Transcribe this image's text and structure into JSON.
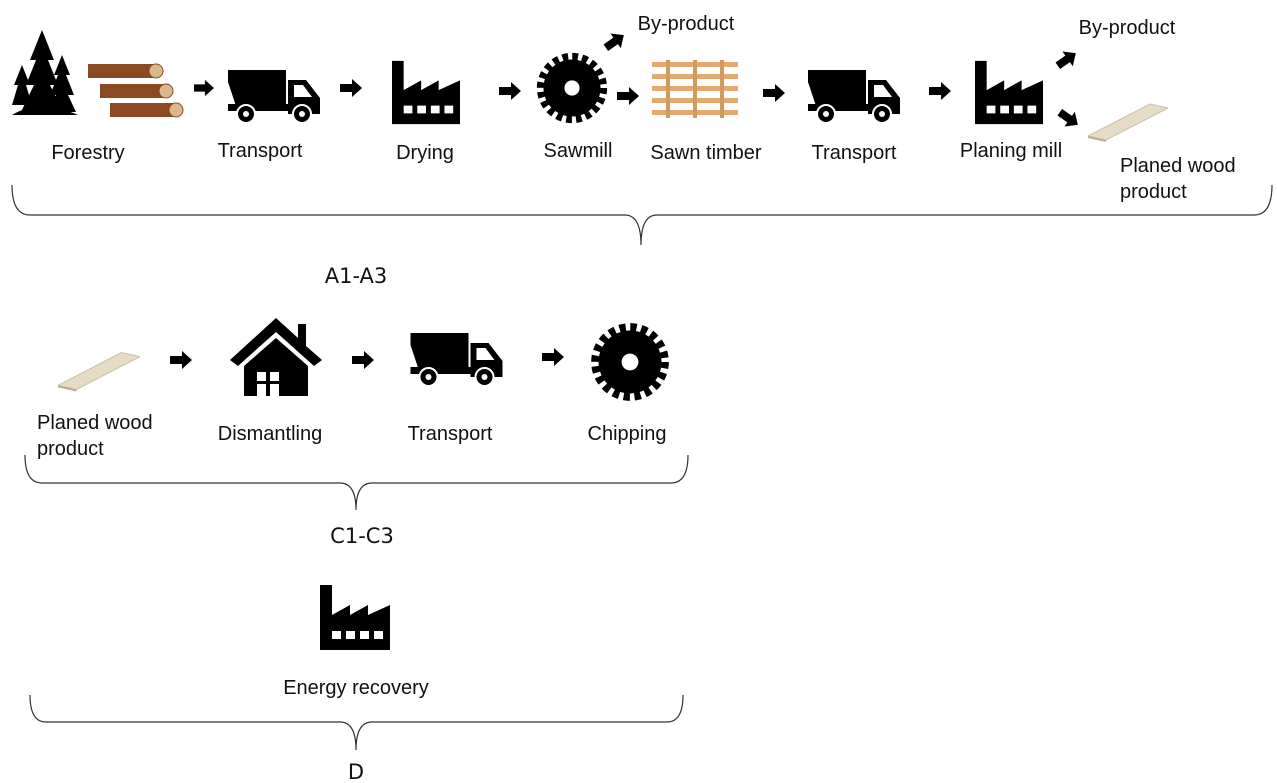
{
  "a1_a3": {
    "label": "A1-A3",
    "steps": [
      {
        "label": "Forestry"
      },
      {
        "label": "Transport"
      },
      {
        "label": "Drying"
      },
      {
        "label": "Sawmill"
      },
      {
        "label": "Sawn timber"
      },
      {
        "label": "Transport"
      },
      {
        "label": "Planing mill"
      },
      {
        "label": "Planed wood product"
      }
    ],
    "byproducts": [
      "By-product",
      "By-product"
    ]
  },
  "c1_c3": {
    "label": "C1-C3",
    "steps": [
      {
        "label": "Planed wood product"
      },
      {
        "label": "Dismantling"
      },
      {
        "label": "Transport"
      },
      {
        "label": "Chipping"
      }
    ]
  },
  "d": {
    "label": "D",
    "steps": [
      {
        "label": "Energy recovery"
      }
    ]
  }
}
